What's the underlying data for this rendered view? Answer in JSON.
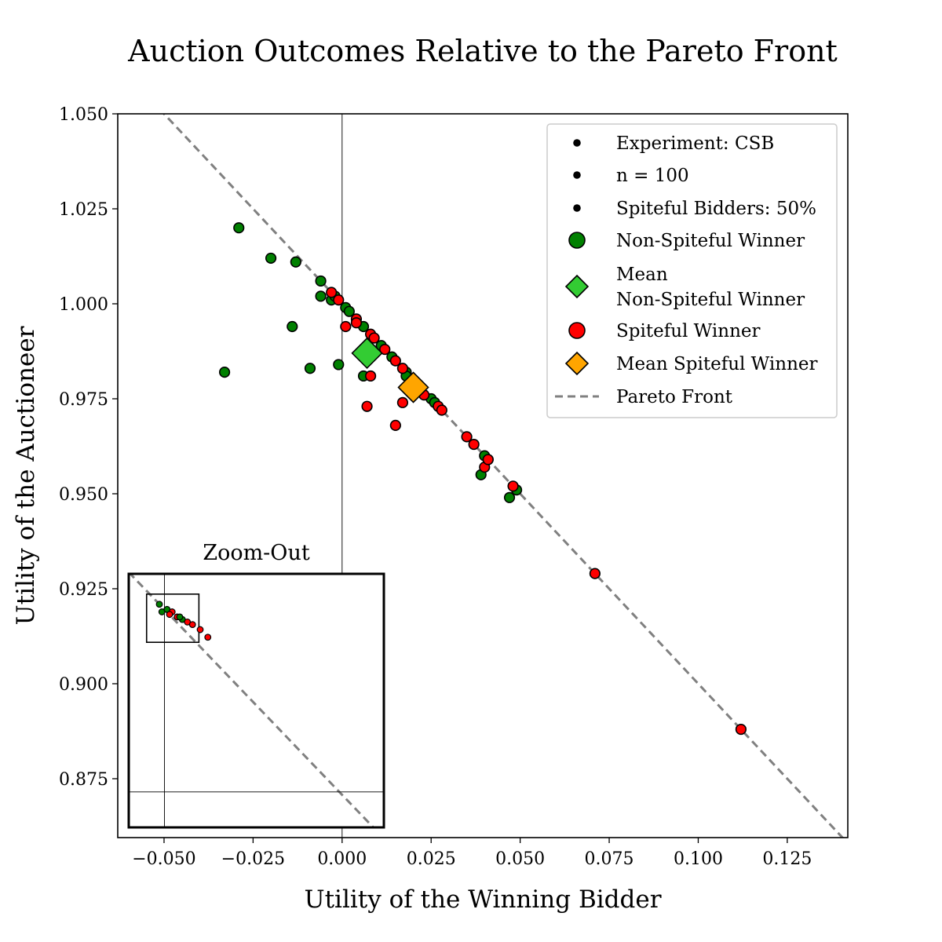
{
  "chart_data": {
    "type": "scatter",
    "title": "Auction Outcomes Relative to the Pareto Front",
    "xlabel": "Utility of the Winning Bidder",
    "ylabel": "Utility of the Auctioneer",
    "xlim": [
      -0.063,
      0.142
    ],
    "ylim": [
      0.8595,
      1.05
    ],
    "x_ticks": [
      -0.05,
      -0.025,
      0.0,
      0.025,
      0.05,
      0.075,
      0.1,
      0.125
    ],
    "x_tick_labels": [
      "−0.050",
      "−0.025",
      "0.000",
      "0.025",
      "0.050",
      "0.075",
      "0.100",
      "0.125"
    ],
    "y_ticks": [
      0.875,
      0.9,
      0.925,
      0.95,
      0.975,
      1.0,
      1.025,
      1.05
    ],
    "y_tick_labels": [
      "0.875",
      "0.900",
      "0.925",
      "0.950",
      "0.975",
      "1.000",
      "1.025",
      "1.050"
    ],
    "grid": false,
    "reference_lines": {
      "vertical_x": 0.0,
      "pareto_front": {
        "slope": -1,
        "intercept": 1.0
      }
    },
    "legend": {
      "placement": "top-right",
      "entries": [
        {
          "label": "Experiment: CSB",
          "marker": "dot"
        },
        {
          "label": "n = 100",
          "marker": "dot"
        },
        {
          "label": "Spiteful Bidders: 50%",
          "marker": "dot"
        },
        {
          "label": "Non-Spiteful Winner",
          "marker": "circle",
          "color": "#008000"
        },
        {
          "label": "Mean\nNon-Spiteful Winner",
          "marker": "diamond",
          "color": "#33cc33"
        },
        {
          "label": "Spiteful Winner",
          "marker": "circle",
          "color": "#ff0000"
        },
        {
          "label": "Mean Spiteful Winner",
          "marker": "diamond",
          "color": "#ffa500"
        },
        {
          "label": "Pareto Front",
          "marker": "dashed-line",
          "color": "#808080"
        }
      ]
    },
    "series": [
      {
        "name": "Non-Spiteful Winner",
        "color": "#008000",
        "points": [
          [
            -0.029,
            1.02
          ],
          [
            -0.02,
            1.012
          ],
          [
            -0.013,
            1.011
          ],
          [
            -0.014,
            0.994
          ],
          [
            -0.033,
            0.982
          ],
          [
            -0.009,
            0.983
          ],
          [
            -0.001,
            0.984
          ],
          [
            -0.006,
            1.006
          ],
          [
            -0.006,
            1.002
          ],
          [
            -0.003,
            1.001
          ],
          [
            -0.002,
            1.002
          ],
          [
            0.001,
            0.999
          ],
          [
            0.002,
            0.998
          ],
          [
            0.006,
            0.994
          ],
          [
            0.006,
            0.981
          ],
          [
            0.011,
            0.989
          ],
          [
            0.014,
            0.986
          ],
          [
            0.018,
            0.982
          ],
          [
            0.018,
            0.981
          ],
          [
            0.025,
            0.975
          ],
          [
            0.04,
            0.96
          ],
          [
            0.039,
            0.955
          ],
          [
            0.047,
            0.949
          ],
          [
            0.049,
            0.951
          ],
          [
            0.041,
            0.959
          ],
          [
            0.026,
            0.974
          ]
        ]
      },
      {
        "name": "Spiteful Winner",
        "color": "#ff0000",
        "points": [
          [
            -0.003,
            1.003
          ],
          [
            -0.001,
            1.001
          ],
          [
            0.001,
            0.994
          ],
          [
            0.004,
            0.996
          ],
          [
            0.004,
            0.995
          ],
          [
            0.008,
            0.992
          ],
          [
            0.009,
            0.991
          ],
          [
            0.012,
            0.988
          ],
          [
            0.015,
            0.985
          ],
          [
            0.017,
            0.983
          ],
          [
            0.017,
            0.974
          ],
          [
            0.008,
            0.981
          ],
          [
            0.007,
            0.973
          ],
          [
            0.015,
            0.968
          ],
          [
            0.023,
            0.976
          ],
          [
            0.027,
            0.973
          ],
          [
            0.028,
            0.972
          ],
          [
            0.035,
            0.965
          ],
          [
            0.037,
            0.963
          ],
          [
            0.04,
            0.957
          ],
          [
            0.041,
            0.959
          ],
          [
            0.048,
            0.952
          ],
          [
            0.071,
            0.929
          ],
          [
            0.112,
            0.888
          ]
        ]
      },
      {
        "name": "Mean Non-Spiteful Winner",
        "color": "#33cc33",
        "points": [
          [
            0.007,
            0.987
          ]
        ]
      },
      {
        "name": "Mean Spiteful Winner",
        "color": "#ffa500",
        "points": [
          [
            0.02,
            0.978
          ]
        ]
      }
    ],
    "inset": {
      "title": "Zoom-Out",
      "points": [
        {
          "u": 0.12,
          "v": 0.12,
          "c": "g"
        },
        {
          "u": 0.13,
          "v": 0.15,
          "c": "g"
        },
        {
          "u": 0.15,
          "v": 0.14,
          "c": "g"
        },
        {
          "u": 0.17,
          "v": 0.15,
          "c": "r"
        },
        {
          "u": 0.19,
          "v": 0.17,
          "c": "r"
        },
        {
          "u": 0.21,
          "v": 0.18,
          "c": "g"
        },
        {
          "u": 0.23,
          "v": 0.19,
          "c": "r"
        },
        {
          "u": 0.25,
          "v": 0.2,
          "c": "r"
        },
        {
          "u": 0.28,
          "v": 0.22,
          "c": "r"
        },
        {
          "u": 0.31,
          "v": 0.25,
          "c": "r"
        },
        {
          "u": 0.16,
          "v": 0.16,
          "c": "r"
        },
        {
          "u": 0.2,
          "v": 0.17,
          "c": "g"
        }
      ]
    }
  }
}
